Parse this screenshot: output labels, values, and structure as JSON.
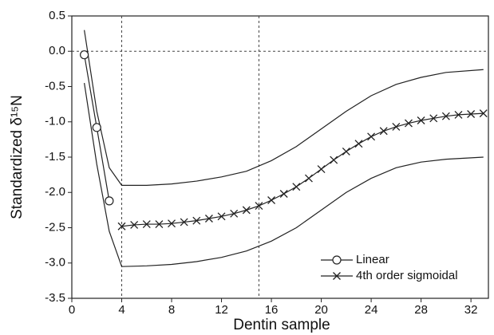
{
  "chart_data": {
    "type": "line",
    "x_label": "Dentin sample",
    "y_label": "Standardized δ¹⁵N",
    "xlim": [
      0,
      33.4
    ],
    "ylim": [
      -3.5,
      0.5
    ],
    "xticks": [
      0,
      4,
      8,
      12,
      16,
      20,
      24,
      28,
      32
    ],
    "yticks": [
      {
        "value": 0.5,
        "label": "0.5"
      },
      {
        "value": 0,
        "label": "0.0"
      },
      {
        "value": -0.5,
        "label": "-0.5"
      },
      {
        "value": -1,
        "label": "-1.0"
      },
      {
        "value": -1.5,
        "label": "-1.5"
      },
      {
        "value": -2,
        "label": "-2.0"
      },
      {
        "value": -2.5,
        "label": "-2.5"
      },
      {
        "value": -3,
        "label": "-3.0"
      },
      {
        "value": -3.5,
        "label": "-3.5"
      }
    ],
    "vlines": [
      4,
      15
    ],
    "hline": 0,
    "legend": "lower right",
    "bands": [
      {
        "x": [
          1,
          2,
          3,
          4,
          6,
          8,
          10,
          12,
          14,
          16,
          18,
          20,
          22,
          24,
          26,
          28,
          30,
          33
        ],
        "values": [
          0.3,
          -0.85,
          -1.65,
          -1.9,
          -1.9,
          -1.88,
          -1.84,
          -1.78,
          -1.7,
          -1.55,
          -1.35,
          -1.1,
          -0.85,
          -0.63,
          -0.47,
          -0.37,
          -0.3,
          -0.26
        ]
      },
      {
        "x": [
          1,
          2,
          3,
          4,
          6,
          8,
          10,
          12,
          14,
          16,
          18,
          20,
          22,
          24,
          26,
          28,
          30,
          33
        ],
        "values": [
          -0.45,
          -1.6,
          -2.55,
          -3.05,
          -3.04,
          -3.02,
          -2.98,
          -2.92,
          -2.83,
          -2.69,
          -2.5,
          -2.25,
          -2.0,
          -1.8,
          -1.65,
          -1.57,
          -1.53,
          -1.5
        ]
      }
    ],
    "series": [
      {
        "name": "Linear",
        "marker": "circle",
        "color": "#222",
        "x": [
          1,
          2,
          3
        ],
        "values": [
          -0.05,
          -1.08,
          -2.12
        ]
      },
      {
        "name": "4th order sigmoidal",
        "marker": "x",
        "color": "#222",
        "x": [
          4,
          5,
          6,
          7,
          8,
          9,
          10,
          11,
          12,
          13,
          14,
          15,
          16,
          17,
          18,
          19,
          20,
          21,
          22,
          23,
          24,
          25,
          26,
          27,
          28,
          29,
          30,
          31,
          32,
          33
        ],
        "values": [
          -2.48,
          -2.46,
          -2.45,
          -2.45,
          -2.44,
          -2.42,
          -2.4,
          -2.37,
          -2.34,
          -2.3,
          -2.25,
          -2.19,
          -2.11,
          -2.02,
          -1.92,
          -1.8,
          -1.67,
          -1.54,
          -1.42,
          -1.31,
          -1.21,
          -1.13,
          -1.07,
          -1.02,
          -0.98,
          -0.95,
          -0.92,
          -0.9,
          -0.89,
          -0.88
        ]
      }
    ]
  }
}
